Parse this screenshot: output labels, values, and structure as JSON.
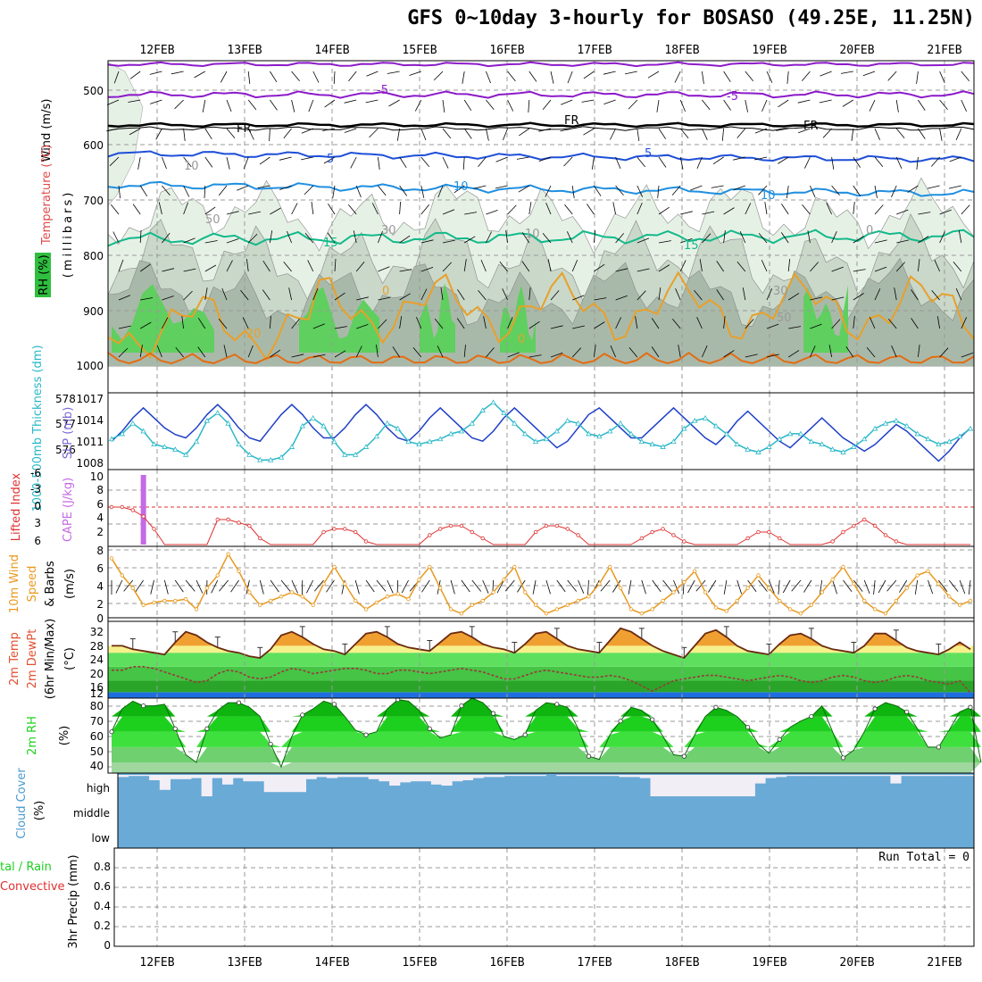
{
  "title": "GFS 0~10day 3-hourly for BOSASO (49.25E, 11.25N)",
  "dates": [
    "12FEB",
    "13FEB",
    "14FEB",
    "15FEB",
    "16FEB",
    "17FEB",
    "18FEB",
    "19FEB",
    "20FEB",
    "21FEB"
  ],
  "colors": {
    "rh_dark": "#a9b9a9",
    "rh_mid": "#c9d8c9",
    "rh_light": "#e6f1e6",
    "rh_green": "#5fcf5f",
    "t_purple": "#8c1ac9",
    "t_black": "#000000",
    "t_blue": "#1e4fd8",
    "t_sky": "#1f8fe0",
    "t_teal": "#13b98a",
    "t_orange": "#e8a02a",
    "t_deep_orange": "#e46d13",
    "slp": "#1e3fc8",
    "thickness": "#2ab8c8",
    "cape": "#c56ae6",
    "lifted": "#e03030",
    "wind10": "#e89a20",
    "cloud": "#6aaad6",
    "rh2m": "#1ed01e"
  },
  "upper_panel": {
    "y_title": "(millibars)",
    "legend_wind": "Wind (m/s)",
    "legend_temp": "Temperature (°C)",
    "legend_rh": "RH (%)",
    "y_ticks": [
      "500",
      "600",
      "700",
      "800",
      "900",
      "1000"
    ],
    "rh_contour_labels": [
      "10",
      "30",
      "50",
      "0"
    ],
    "isotherm_labels": {
      "m5": "-5",
      "fr": "FR",
      "p5": "5",
      "p10": "10",
      "p15": "15",
      "p20": "20",
      "p0": "0"
    }
  },
  "slp_panel": {
    "left_label": "1000-500mb Thickness (dm)",
    "right_label": "SLP (mb)",
    "thickness_ticks": [
      "578",
      "577",
      "576"
    ],
    "slp_ticks": [
      "1017",
      "1014",
      "1011",
      "1008"
    ]
  },
  "cape_panel": {
    "left_label": "Lifted Index",
    "right_label": "CAPE (J/kg)",
    "li_ticks": [
      "-6",
      "-3",
      "0",
      "3",
      "6"
    ],
    "cape_ticks": [
      "10",
      "8",
      "6",
      "4",
      "2"
    ]
  },
  "wind10_panel": {
    "label1": "10m Wind",
    "label2": "Speed",
    "label3": "& Barbs",
    "unit": "(m/s)",
    "ticks": [
      "8",
      "6",
      "4",
      "2",
      "0"
    ]
  },
  "temp_panel": {
    "label1": "2m Temp",
    "label2": "2m DewPt",
    "label3": "(6hr Min/Max)",
    "unit": "(°C)",
    "ticks": [
      "32",
      "28",
      "24",
      "20",
      "16",
      "12"
    ]
  },
  "rh2m_panel": {
    "label": "2m RH",
    "unit": "(%)",
    "ticks": [
      "80",
      "70",
      "60",
      "50",
      "40"
    ]
  },
  "cloud_panel": {
    "label": "Cloud Cover",
    "unit": "(%)",
    "levels": [
      "high",
      "middle",
      "low"
    ]
  },
  "precip_panel": {
    "label1": "tal / Rain",
    "label2": "Convective",
    "label3": "3hr Precip (mm)",
    "ticks": [
      "0.8",
      "0.6",
      "0.4",
      "0.2",
      "0"
    ],
    "run_total": "Run Total = 0"
  },
  "chart_data": [
    {
      "type": "line",
      "name": "slp",
      "ylabel": "SLP (mb)",
      "ylim": [
        1007,
        1018
      ],
      "x_step_hours": 3,
      "values": [
        1011,
        1012.5,
        1014.5,
        1016,
        1014.5,
        1013,
        1012,
        1011.5,
        1013,
        1015,
        1016.5,
        1015,
        1013,
        1011.5,
        1011,
        1013,
        1015,
        1016.5,
        1015,
        1013,
        1011.5,
        1011.5,
        1013,
        1015,
        1016.5,
        1015,
        1013,
        1011.5,
        1011,
        1012.5,
        1014.5,
        1016,
        1014.5,
        1013,
        1011.5,
        1011,
        1012.5,
        1014.5,
        1016,
        1014.5,
        1013,
        1011.5,
        1010,
        1011,
        1013,
        1015,
        1016,
        1014.5,
        1013,
        1011.5,
        1011.5,
        1013,
        1014.5,
        1016,
        1014.5,
        1013,
        1011.5,
        1010.5,
        1012,
        1014,
        1015.5,
        1014,
        1012.5,
        1011,
        1010,
        1011.5,
        1013,
        1014.5,
        1013,
        1011.5,
        1010.5,
        1009.5,
        1010.5,
        1012,
        1013.5,
        1012.5,
        1011,
        1009.5,
        1008,
        1009.5,
        1011.5,
        1013
      ]
    },
    {
      "type": "line",
      "name": "thickness",
      "ylabel": "1000-500mb Thickness (dm)",
      "ylim": [
        575.5,
        578.3
      ],
      "values": [
        576.6,
        576.8,
        577.2,
        576.9,
        576.4,
        576.3,
        576.2,
        576.0,
        576.5,
        577.3,
        577.6,
        577.2,
        576.4,
        576.0,
        575.8,
        575.8,
        575.9,
        576.3,
        577.1,
        577.4,
        577.1,
        576.5,
        576.0,
        576.0,
        576.3,
        576.7,
        577.2,
        577.0,
        576.5,
        576.4,
        576.5,
        576.6,
        576.8,
        576.9,
        577.2,
        577.7,
        578.0,
        577.6,
        577.2,
        576.8,
        576.5,
        576.6,
        576.9,
        577.3,
        577.2,
        576.8,
        576.7,
        576.9,
        577.2,
        576.8,
        576.5,
        576.4,
        576.3,
        576.5,
        577.0,
        577.3,
        577.4,
        577.1,
        576.8,
        576.4,
        576.2,
        576.1,
        576.3,
        576.6,
        576.8,
        576.8,
        576.5,
        576.4,
        576.2,
        576.1,
        576.3,
        576.6,
        577.0,
        577.2,
        577.3,
        577.1,
        576.8,
        576.6,
        576.4,
        576.5,
        576.7,
        577.0
      ]
    },
    {
      "type": "line",
      "name": "lifted_index",
      "ylabel": "Lifted Index",
      "ylim": [
        6,
        -6
      ],
      "values": [
        0,
        0,
        0.5,
        1.5,
        3.5,
        6,
        6,
        6,
        6,
        6,
        2,
        2,
        2.5,
        3,
        5,
        6,
        6,
        6,
        6,
        6,
        4,
        3.5,
        3.5,
        4,
        5.5,
        6,
        6,
        6,
        6,
        6,
        4.5,
        3.5,
        3,
        3,
        4,
        5,
        6,
        6,
        6,
        6,
        4,
        3,
        3,
        3.5,
        4.5,
        6,
        6,
        6,
        6,
        6,
        5,
        4,
        3.5,
        4.5,
        5.5,
        6,
        6,
        6,
        6,
        6,
        5,
        4,
        4,
        5,
        6,
        6,
        6,
        6,
        5.5,
        4,
        3,
        2,
        3,
        4.5,
        5.5,
        6,
        6,
        6,
        6,
        6,
        6,
        6
      ]
    },
    {
      "type": "bar",
      "name": "cape",
      "ylabel": "CAPE (J/kg)",
      "ylim": [
        0,
        10
      ],
      "values": [
        0,
        0,
        0,
        10,
        0,
        0,
        0,
        0,
        0,
        0,
        0,
        0,
        0,
        0,
        0,
        0,
        0,
        0,
        0,
        0,
        0,
        0,
        0,
        0,
        0,
        0,
        0,
        0,
        0,
        0,
        0,
        0,
        0,
        0,
        0,
        0,
        0,
        0,
        0,
        0,
        0,
        0,
        0,
        0,
        0,
        0,
        0,
        0,
        0,
        0,
        0,
        0,
        0,
        0,
        0,
        0,
        0,
        0,
        0,
        0,
        0,
        0,
        0,
        0,
        0,
        0,
        0,
        0,
        0,
        0,
        0,
        0,
        0,
        0,
        0,
        0,
        0,
        0,
        0,
        0,
        0,
        0
      ]
    },
    {
      "type": "line",
      "name": "wind10m_speed",
      "ylabel": "(m/s)",
      "ylim": [
        0,
        8
      ],
      "values": [
        7,
        5,
        3.5,
        1.5,
        1.8,
        2,
        2,
        2.2,
        1,
        3.5,
        5,
        7.5,
        5.5,
        3,
        1.5,
        2,
        2.5,
        3,
        2.5,
        1.5,
        4,
        6,
        4,
        2,
        1,
        1.8,
        2.5,
        2.8,
        2.2,
        4.5,
        6,
        3.5,
        1,
        0.5,
        1.5,
        2,
        3,
        4.5,
        6,
        3,
        1.5,
        0.5,
        1,
        1.5,
        2,
        2.5,
        4,
        6,
        3.5,
        1,
        0.5,
        1,
        2,
        3,
        4.2,
        5.5,
        3,
        1.2,
        0.8,
        2,
        3.5,
        5,
        3.5,
        2,
        1,
        0.5,
        1.5,
        3,
        4.5,
        6,
        4,
        2,
        1,
        0.5,
        2,
        3.5,
        5,
        5.5,
        4,
        2.5,
        1.5,
        2
      ]
    },
    {
      "type": "area",
      "name": "temp2m",
      "ylabel": "(°C)",
      "ylim": [
        11,
        33
      ],
      "values": [
        26,
        26,
        25,
        24.5,
        24,
        23.5,
        27,
        30,
        29,
        27,
        25.5,
        24.5,
        24,
        23,
        22.5,
        25,
        29,
        30,
        28.5,
        26.5,
        25,
        24.5,
        23.5,
        26.5,
        29.5,
        30,
        28.5,
        26.5,
        25.5,
        25,
        24.5,
        27,
        29.5,
        30,
        28.5,
        26.5,
        25.5,
        25,
        24,
        26.5,
        29.5,
        30,
        28,
        26,
        25,
        24.5,
        24,
        27.5,
        31,
        30,
        28,
        26,
        24.5,
        23.5,
        22.5,
        26,
        29.5,
        30.5,
        28.5,
        26,
        24.5,
        24,
        23.5,
        26.5,
        29,
        29.5,
        28,
        26,
        25,
        24.5,
        24,
        26,
        29.5,
        29.5,
        27.5,
        25.5,
        24.5,
        24,
        23.5,
        25,
        27,
        25
      ]
    },
    {
      "type": "line",
      "name": "dewpoint2m",
      "ylabel": "(°C)",
      "ylim": [
        11,
        33
      ],
      "values": [
        19,
        19,
        20,
        20,
        19.5,
        18.5,
        17.5,
        16.5,
        15.5,
        16,
        18,
        19,
        18.5,
        17,
        16.5,
        17,
        18.5,
        19.5,
        19,
        18,
        18.5,
        19,
        19.5,
        19.5,
        19,
        18,
        18,
        19,
        19,
        18.5,
        18,
        18.5,
        19,
        19.5,
        19,
        18.5,
        17.5,
        16.5,
        16.5,
        17.5,
        18.5,
        19,
        18.5,
        18,
        17.5,
        17,
        17,
        17.5,
        17,
        16,
        14.5,
        13,
        14.5,
        16,
        16.5,
        17,
        17.5,
        17.5,
        17,
        16.5,
        16,
        16.5,
        17,
        17.5,
        17,
        16,
        15.5,
        16,
        17,
        17.5,
        17,
        16,
        15.5,
        16,
        17,
        17.5,
        17,
        16,
        15.5,
        15,
        16,
        12.5
      ]
    },
    {
      "type": "area",
      "name": "rh2m",
      "ylabel": "(%)",
      "ylim": [
        33,
        82
      ],
      "values": [
        60,
        75,
        80,
        77,
        77,
        78,
        62,
        45,
        40,
        62,
        74,
        79,
        79,
        76,
        70,
        52,
        37,
        57,
        71,
        75,
        80,
        78,
        70,
        61,
        58,
        60,
        75,
        81,
        80,
        74,
        62,
        56,
        58,
        77,
        82,
        79,
        72,
        57,
        55,
        58,
        74,
        79,
        78,
        76,
        62,
        44,
        42,
        58,
        67,
        76,
        74,
        68,
        57,
        45,
        44,
        58,
        70,
        76,
        74,
        70,
        63,
        52,
        46,
        55,
        63,
        67,
        70,
        77,
        60,
        43,
        48,
        60,
        75,
        79,
        77,
        73,
        62,
        50,
        50,
        61,
        73,
        76,
        40
      ]
    },
    {
      "type": "bar",
      "name": "cloud_high",
      "ylabel": "(%)",
      "ylim": [
        0,
        100
      ],
      "values": [
        10,
        5,
        5,
        25,
        70,
        20,
        20,
        15,
        100,
        15,
        45,
        15,
        30,
        30,
        80,
        80,
        80,
        80,
        20,
        10,
        15,
        10,
        10,
        10,
        20,
        30,
        50,
        35,
        30,
        30,
        45,
        50,
        30,
        25,
        15,
        10,
        10,
        5,
        5,
        5,
        5,
        0,
        5,
        5,
        5,
        5,
        5,
        5,
        10,
        10,
        15,
        100,
        100,
        100,
        100,
        100,
        100,
        100,
        100,
        100,
        100,
        40,
        15,
        10,
        5,
        5,
        5,
        5,
        5,
        5,
        5,
        5,
        5,
        5,
        40,
        5,
        5,
        5,
        5,
        5,
        5,
        5
      ]
    }
  ]
}
